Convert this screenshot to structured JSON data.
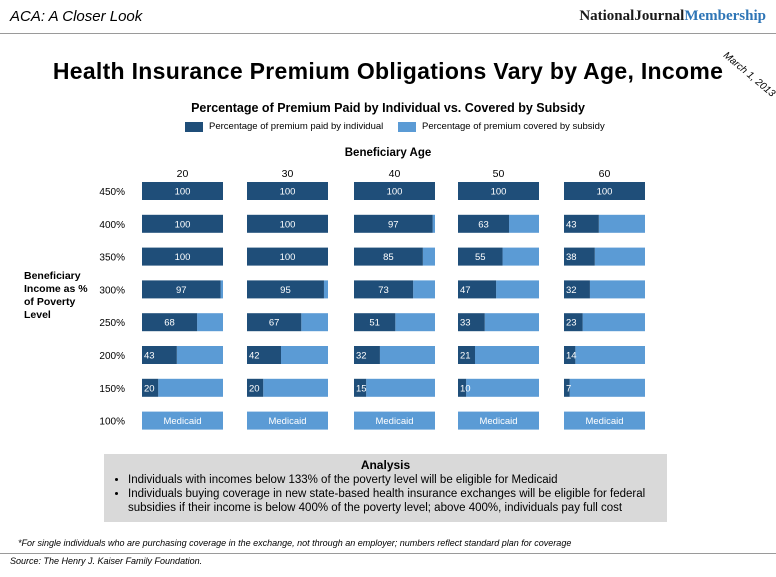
{
  "header": {
    "left": "ACA: A Closer Look",
    "brand_main": "NationalJournal",
    "brand_accent": "Membership",
    "date": "March 1, 2013"
  },
  "main_title": "Health Insurance Premium Obligations Vary by Age, Income",
  "colors": {
    "individual": "#1f4e79",
    "subsidy": "#5b9bd5",
    "brand_accent": "#2e75b6"
  },
  "chart_data": {
    "type": "bar",
    "subtype": "stacked-horizontal-small-multiples",
    "title": "Percentage of Premium Paid by Individual vs. Covered by Subsidy",
    "legend": [
      "Percentage of premium paid by individual",
      "Percentage of premium covered by subsidy"
    ],
    "xlabel": "Beneficiary Age",
    "ylabel": "Beneficiary Income as % of Poverty Level",
    "ages": [
      "20",
      "30",
      "40",
      "50",
      "60"
    ],
    "income_levels": [
      "450%",
      "400%",
      "350%",
      "300%",
      "250%",
      "200%",
      "150%",
      "100%"
    ],
    "medicaid_label": "Medicaid",
    "xlim": [
      0,
      100
    ],
    "series": [
      {
        "age": "20",
        "values": [
          100,
          100,
          100,
          97,
          68,
          43,
          20,
          null
        ]
      },
      {
        "age": "30",
        "values": [
          100,
          100,
          100,
          95,
          67,
          42,
          20,
          null
        ]
      },
      {
        "age": "40",
        "values": [
          100,
          97,
          85,
          73,
          51,
          32,
          15,
          null
        ]
      },
      {
        "age": "50",
        "values": [
          100,
          63,
          55,
          47,
          33,
          21,
          10,
          null
        ]
      },
      {
        "age": "60",
        "values": [
          100,
          43,
          38,
          32,
          23,
          14,
          7,
          null
        ]
      }
    ]
  },
  "analysis": {
    "title": "Analysis",
    "bullets": [
      "Individuals with incomes below 133% of the poverty level will be eligible for Medicaid",
      "Individuals buying coverage in new state-based health insurance exchanges will be eligible for federal subsidies if their income is below 400% of the poverty level; above 400%, individuals pay full cost"
    ]
  },
  "footnote": "*For single individuals who are purchasing coverage in the exchange, not through an employer; numbers reflect standard plan for coverage",
  "source": "Source: The Henry J. Kaiser Family Foundation."
}
